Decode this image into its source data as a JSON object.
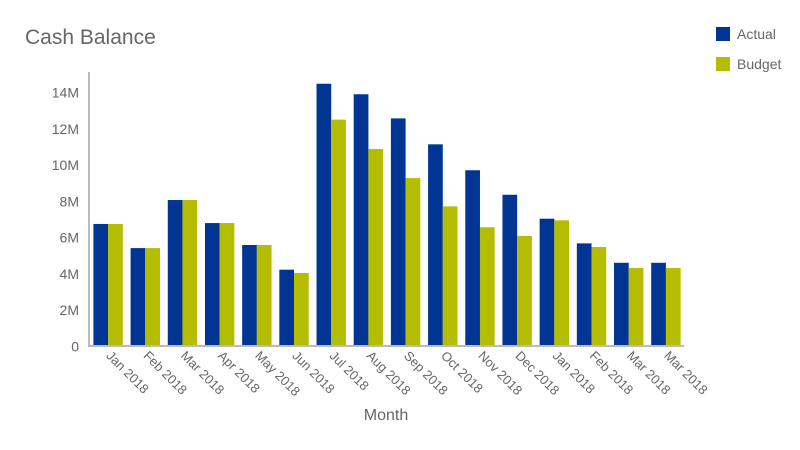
{
  "title": "Cash Balance",
  "legend": [
    {
      "label": "Actual",
      "color": "#003594"
    },
    {
      "label": "Budget",
      "color": "#b5bd00"
    }
  ],
  "chart_data": {
    "type": "bar",
    "title": "Cash Balance",
    "xlabel": "Month",
    "ylabel": "",
    "ylim": [
      0,
      14.5
    ],
    "yticks": [
      0,
      2,
      4,
      6,
      8,
      10,
      12,
      14
    ],
    "ytick_labels": [
      "0",
      "2M",
      "4M",
      "6M",
      "8M",
      "10M",
      "12M",
      "14M"
    ],
    "grid": false,
    "legend_position": "top-right",
    "categories": [
      "Jan 2018",
      "Feb 2018",
      "Mar 2018",
      "Apr 2018",
      "May 2018",
      "Jun 2018",
      "Jul 2018",
      "Aug 2018",
      "Sep 2018",
      "Oct 2018",
      "Nov 2018",
      "Dec 2018",
      "Jan 2018",
      "Feb 2018",
      "Mar 2018",
      "Mar 2018"
    ],
    "series": [
      {
        "name": "Actual",
        "color": "#003594",
        "values": [
          6.7,
          5.37,
          8.02,
          6.75,
          5.54,
          4.18,
          14.43,
          13.85,
          12.52,
          11.09,
          9.66,
          8.31,
          6.99,
          5.63,
          4.56,
          4.56
        ]
      },
      {
        "name": "Budget",
        "color": "#b5bd00",
        "values": [
          6.7,
          5.37,
          8.02,
          6.75,
          5.54,
          4.0,
          12.45,
          10.83,
          9.23,
          7.67,
          6.52,
          6.04,
          6.9,
          5.43,
          4.27,
          4.27
        ]
      }
    ],
    "units": "millions"
  }
}
